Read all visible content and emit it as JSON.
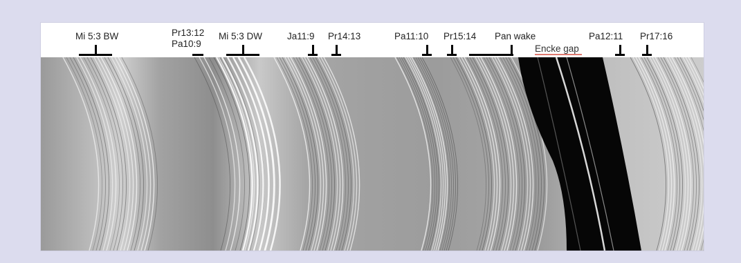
{
  "labels": {
    "mi53bw": "Mi 5:3 BW",
    "pr1312": "Pr13:12",
    "pa109": "Pa10:9",
    "mi53dw": "Mi 5:3 DW",
    "ja119": "Ja11:9",
    "pr1413": "Pr14:13",
    "pa1110": "Pa11:10",
    "pr1514": "Pr15:14",
    "panwake": "Pan wake",
    "enckegap": "Encke gap",
    "pa1211": "Pa12:11",
    "pr1716": "Pr17:16"
  },
  "colors": {
    "page_background": "#dcdcee",
    "frame_background": "#ffffff",
    "marker_color": "#000000",
    "encke_underline": "#e07a70"
  }
}
